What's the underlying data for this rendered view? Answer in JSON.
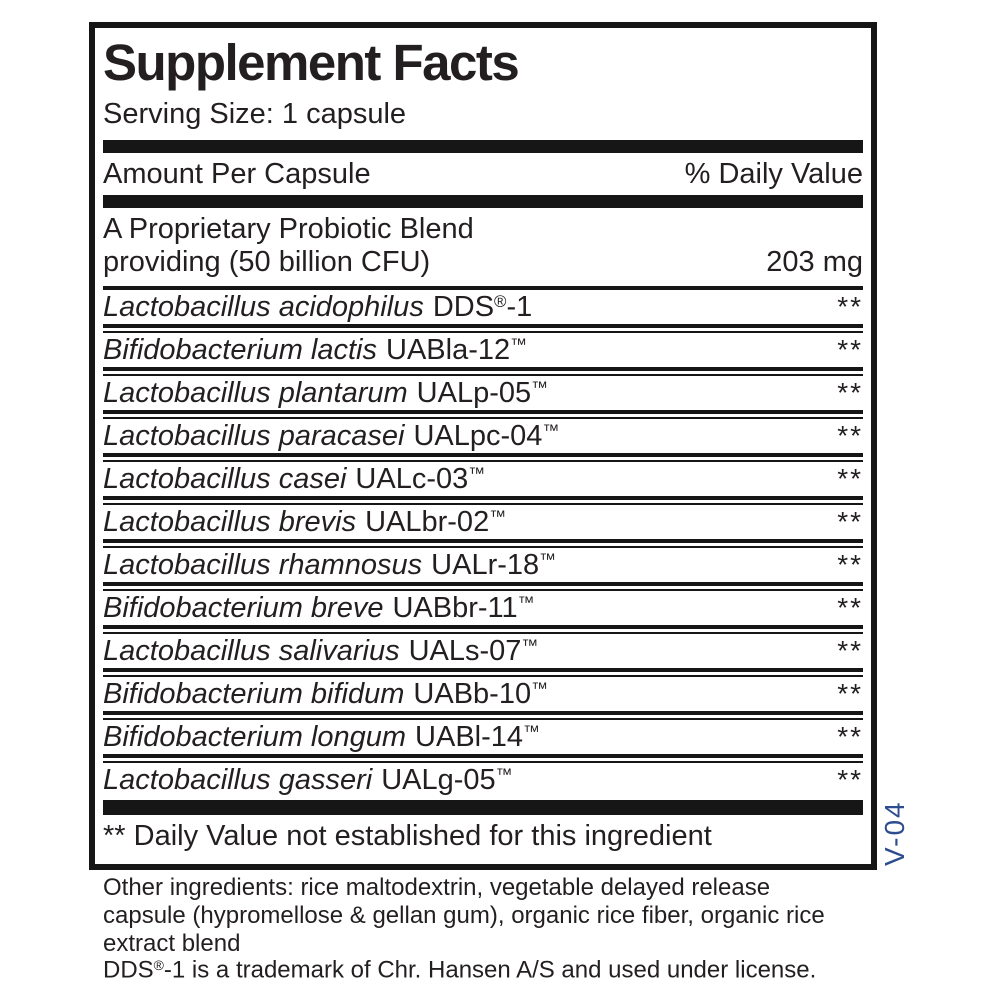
{
  "colors": {
    "ink": "#231f20",
    "bar": "#161616",
    "accent_blue": "#2e4d8e"
  },
  "panel": {
    "title": "Supplement Facts",
    "serving_size": "Serving Size: 1 capsule",
    "header": {
      "amount_col": "Amount Per Capsule",
      "dv_col": "% Daily Value"
    },
    "blend": {
      "line1": "A Proprietary Probiotic Blend",
      "line2": "providing (50 billion CFU)",
      "amount": "203 mg"
    },
    "strains": [
      {
        "species": "Lactobacillus acidophilus",
        "code": "DDS®-1",
        "dv": "**"
      },
      {
        "species": "Bifidobacterium lactis",
        "code": "UABla-12™",
        "dv": "**"
      },
      {
        "species": "Lactobacillus plantarum",
        "code": "UALp-05™",
        "dv": "**"
      },
      {
        "species": "Lactobacillus paracasei",
        "code": "UALpc-04™",
        "dv": "**"
      },
      {
        "species": "Lactobacillus casei",
        "code": "UALc-03™",
        "dv": "**"
      },
      {
        "species": "Lactobacillus brevis",
        "code": "UALbr-02™",
        "dv": "**"
      },
      {
        "species": "Lactobacillus rhamnosus",
        "code": "UALr-18™",
        "dv": "**"
      },
      {
        "species": "Bifidobacterium breve",
        "code": "UABbr-11™",
        "dv": "**"
      },
      {
        "species": "Lactobacillus salivarius",
        "code": "UALs-07™",
        "dv": "**"
      },
      {
        "species": "Bifidobacterium bifidum",
        "code": "UABb-10™",
        "dv": "**"
      },
      {
        "species": "Bifidobacterium longum",
        "code": "UABl-14™",
        "dv": "**"
      },
      {
        "species": "Lactobacillus gasseri",
        "code": "UALg-05™",
        "dv": "**"
      }
    ],
    "footnote": "** Daily Value not established for this ingredient"
  },
  "side_code": "V-04",
  "footer": {
    "other_ingredients": "Other ingredients: rice maltodextrin, vegetable delayed release capsule (hypromellose & gellan gum), organic rice fiber, organic rice extract blend",
    "trademark_note": "DDS®-1 is a trademark of Chr. Hansen A/S and used under license."
  }
}
